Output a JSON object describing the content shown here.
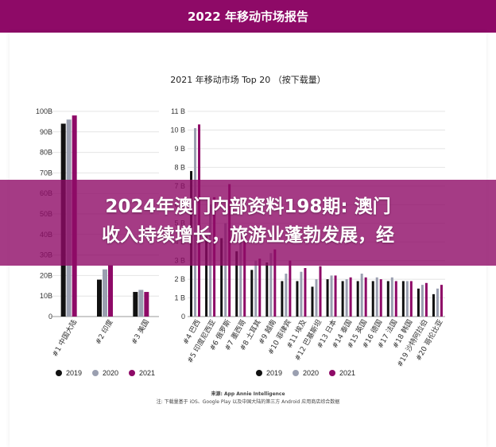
{
  "header": {
    "title": "2022 年移动市场报告"
  },
  "banner": {
    "line1": "2024年澳门内部资料198期: 澳门",
    "line2": "收入持续增长，旅游业蓬勃发展，经"
  },
  "source": {
    "line1": "来源: App Annie Intelligence",
    "line2": "注: 下载量基于 iOS、Google Play 以及中国大陆的第三方 Android 应用商店综合数据"
  },
  "colors": {
    "2019": "#111111",
    "2020": "#9a9fb0",
    "2021": "#8e0a67",
    "header": "#8e0a67"
  },
  "chart_data": [
    {
      "type": "bar",
      "title": "2021 年移动市场 Top 20 （按下载量）",
      "ylim": [
        0,
        100
      ],
      "yticks": [
        0,
        10,
        20,
        30,
        40,
        50,
        60,
        70,
        80,
        90,
        100
      ],
      "ytick_labels": [
        "0",
        "10B",
        "20B",
        "30B",
        "40B",
        "50B",
        "60B",
        "70B",
        "80B",
        "90B",
        "100B"
      ],
      "categories": [
        "#1 中国大陆",
        "#2 印度",
        "#3 美国"
      ],
      "series": [
        {
          "name": "2019",
          "values": [
            94,
            18,
            12
          ]
        },
        {
          "name": "2020",
          "values": [
            96,
            23,
            13
          ]
        },
        {
          "name": "2021",
          "values": [
            98,
            25,
            12
          ]
        }
      ],
      "legend": "bottom"
    },
    {
      "type": "bar",
      "ylim": [
        0,
        11
      ],
      "yticks": [
        0,
        1,
        2,
        3,
        4,
        5,
        6,
        7,
        8,
        9,
        10,
        11
      ],
      "ytick_labels": [
        "0",
        "1 B",
        "2 B",
        "3 B",
        "4 B",
        "5 B",
        "6 B",
        "7 B",
        "8 B",
        "9 B",
        "10 B",
        "11 B"
      ],
      "categories": [
        "#4 巴西",
        "#5 印度尼西亚",
        "#6 俄罗斯",
        "#7 墨西哥",
        "#8 土耳其",
        "#9 越南",
        "#10 菲律宾",
        "#11 埃及",
        "#12 巴基斯坦",
        "#13 日本",
        "#14 泰国",
        "#15 英国",
        "#16 德国",
        "#17 法国",
        "#18 韩国",
        "#19 沙特阿拉伯",
        "#20 哥伦比亚"
      ],
      "series": [
        {
          "name": "2019",
          "values": [
            7.8,
            4.3,
            4.2,
            3.5,
            2.5,
            2.9,
            1.9,
            1.9,
            1.6,
            2.0,
            1.9,
            1.9,
            1.9,
            1.9,
            1.9,
            1.5,
            1.2
          ]
        },
        {
          "name": "2020",
          "values": [
            10.1,
            6.0,
            5.0,
            4.0,
            3.0,
            3.4,
            2.3,
            2.4,
            2.0,
            2.2,
            2.0,
            2.3,
            2.1,
            2.1,
            1.9,
            1.7,
            1.5
          ]
        },
        {
          "name": "2021",
          "values": [
            10.3,
            6.4,
            7.1,
            4.3,
            3.1,
            3.6,
            3.0,
            2.6,
            2.7,
            2.2,
            2.1,
            2.1,
            2.0,
            1.9,
            1.9,
            1.8,
            1.7
          ]
        }
      ],
      "legend": "bottom"
    }
  ]
}
